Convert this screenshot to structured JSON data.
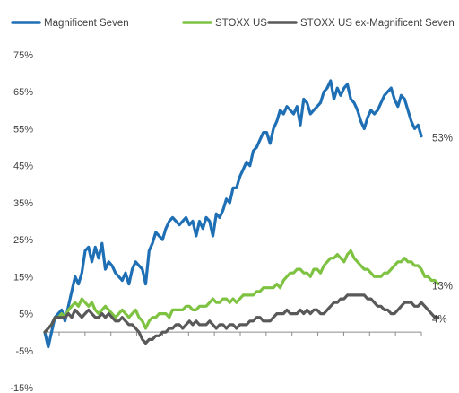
{
  "chart_data": {
    "type": "line",
    "title": "",
    "xlabel": "",
    "ylabel": "",
    "ylim": [
      -15,
      75
    ],
    "yticks": [
      -15,
      -5,
      5,
      15,
      25,
      35,
      45,
      55,
      65,
      75
    ],
    "ytick_labels": [
      "-15%",
      "-5%",
      "5%",
      "15%",
      "25%",
      "35%",
      "45%",
      "55%",
      "65%",
      "75%"
    ],
    "grid": false,
    "legend_position": "top",
    "series": [
      {
        "name": "Magnificent Seven",
        "color": "#1f6fb5",
        "end_label": "53%",
        "values": [
          0,
          -4,
          0,
          4,
          5,
          6,
          3,
          7,
          11,
          15,
          13,
          16,
          22,
          23,
          19,
          23,
          20,
          24,
          17,
          19,
          18,
          16,
          15,
          14,
          16,
          13,
          17,
          19,
          18,
          17,
          13,
          22,
          24,
          27,
          26,
          25,
          28,
          30,
          31,
          30,
          29,
          30,
          31,
          29,
          30,
          26,
          30,
          28,
          31,
          30,
          26,
          32,
          31,
          33,
          36,
          35,
          39,
          39,
          42,
          44,
          46,
          45,
          49,
          50,
          52,
          54,
          54,
          51,
          55,
          57,
          60,
          59,
          61,
          60,
          59,
          61,
          56,
          63,
          62,
          59,
          60,
          61,
          62,
          65,
          66,
          68,
          63,
          66,
          64,
          66,
          67,
          63,
          62,
          60,
          57,
          55,
          58,
          60,
          59,
          60,
          62,
          64,
          65,
          66,
          63,
          61,
          64,
          63,
          60,
          57,
          55,
          56,
          53
        ]
      },
      {
        "name": "STOXX US",
        "color": "#7ec242",
        "end_label": "13%",
        "values": [
          0,
          1,
          2,
          4,
          4,
          5,
          4,
          6,
          7,
          8,
          7,
          9,
          8,
          7,
          8,
          6,
          5,
          6,
          7,
          6,
          5,
          4,
          5,
          6,
          5,
          4,
          5,
          6,
          4,
          3,
          1,
          3,
          4,
          4,
          5,
          5,
          5,
          4,
          6,
          6,
          6,
          6,
          7,
          7,
          6,
          6,
          7,
          7,
          7,
          8,
          9,
          8,
          8,
          9,
          9,
          8,
          9,
          8,
          9,
          10,
          10,
          10,
          10,
          11,
          11,
          12,
          12,
          12,
          12,
          13,
          12,
          14,
          15,
          16,
          16,
          17,
          17,
          16,
          16,
          15,
          17,
          17,
          16,
          18,
          19,
          20,
          20,
          21,
          20,
          19,
          21,
          22,
          20,
          19,
          18,
          17,
          17,
          16,
          15,
          15,
          15,
          16,
          16,
          17,
          18,
          19,
          19,
          20,
          19,
          19,
          18,
          18,
          17,
          15,
          15,
          14,
          14,
          13
        ]
      },
      {
        "name": "STOXX US ex-Magnificent Seven",
        "color": "#595959",
        "end_label": "4%",
        "values": [
          0,
          1,
          2,
          4,
          4,
          4,
          4,
          5,
          4,
          6,
          5,
          4,
          5,
          6,
          5,
          4,
          4,
          5,
          4,
          5,
          4,
          3,
          3,
          4,
          3,
          2,
          2,
          1,
          0,
          -2,
          -3,
          -2,
          -2,
          -1,
          -1,
          0,
          0,
          1,
          1,
          2,
          2,
          1,
          2,
          3,
          2,
          3,
          2,
          2,
          2,
          3,
          2,
          1,
          2,
          2,
          1,
          2,
          2,
          1,
          2,
          2,
          2,
          3,
          3,
          4,
          4,
          3,
          3,
          3,
          4,
          5,
          5,
          5,
          6,
          5,
          5,
          5,
          6,
          5,
          6,
          5,
          6,
          6,
          5,
          5,
          6,
          7,
          8,
          8,
          9,
          9,
          10,
          10,
          10,
          10,
          10,
          10,
          9,
          9,
          8,
          7,
          7,
          6,
          6,
          5,
          5,
          6,
          7,
          8,
          8,
          8,
          7,
          7,
          8,
          7,
          6,
          5,
          4,
          4
        ]
      }
    ]
  }
}
